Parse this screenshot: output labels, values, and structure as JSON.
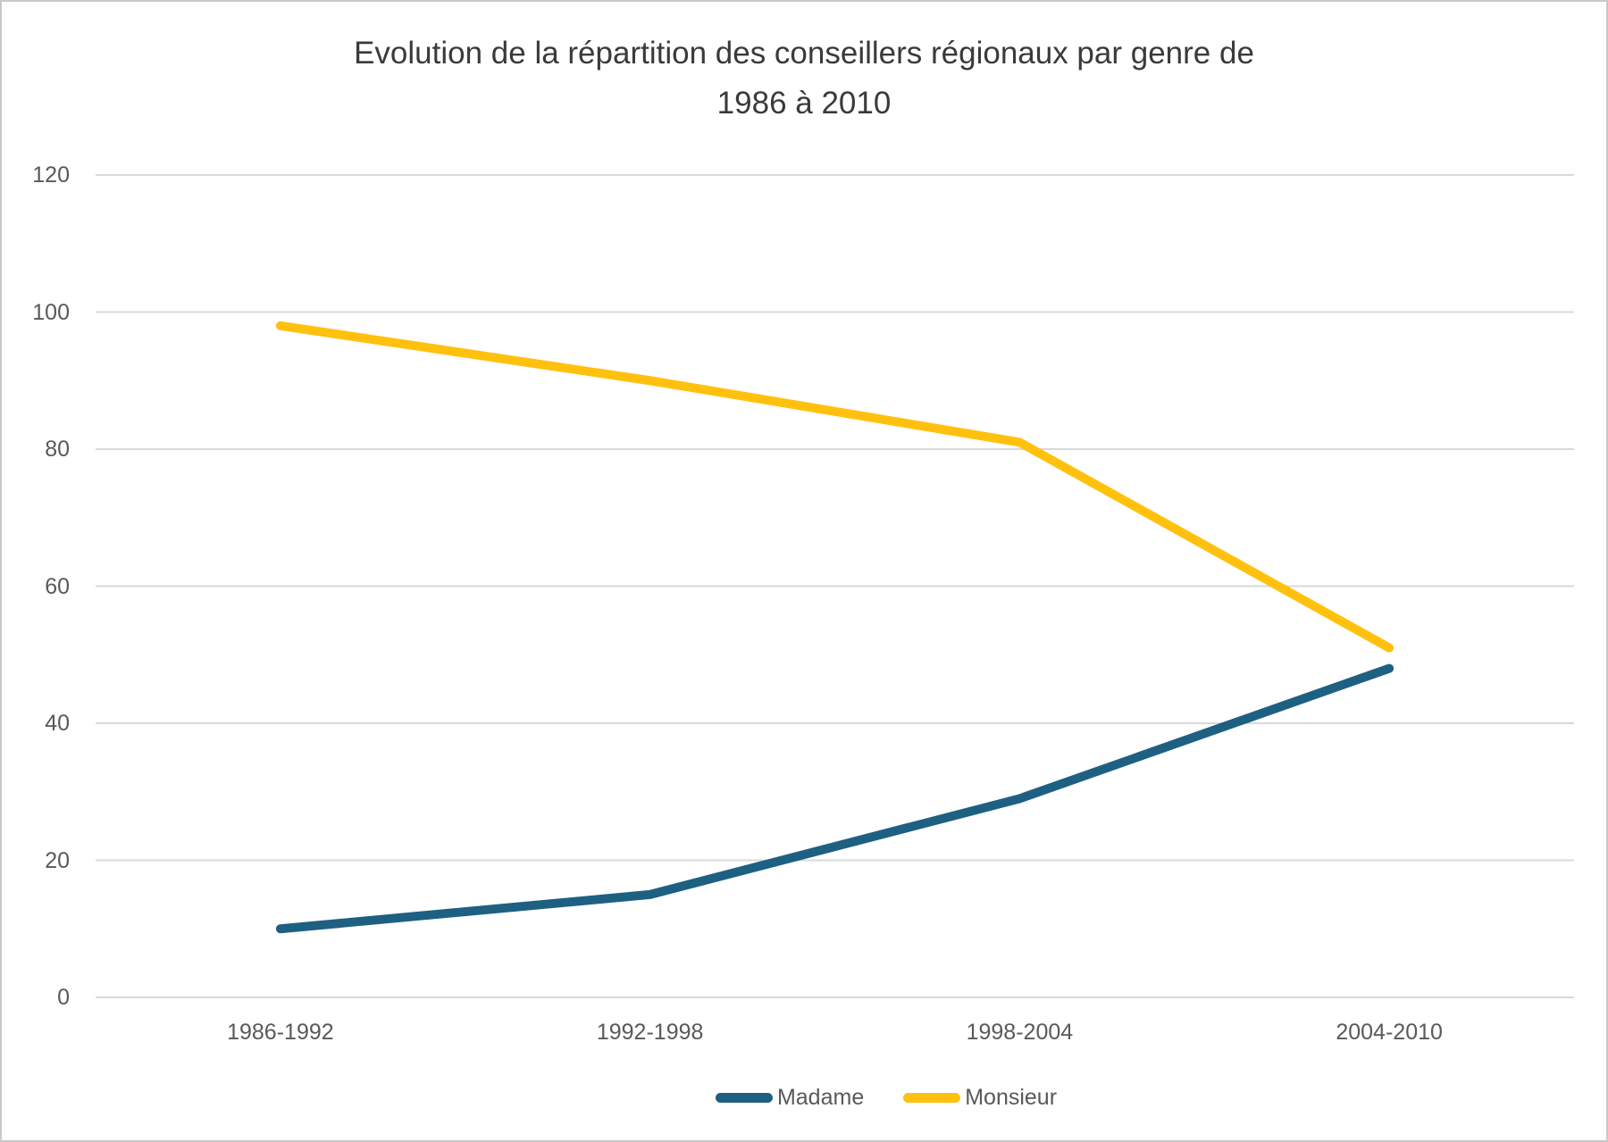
{
  "page": {
    "background": "#ffffff",
    "border_color": "#c9c9c9"
  },
  "chart_data": {
    "type": "line",
    "title": "Evolution de la répartition des conseillers régionaux par genre de 1986 à 2010",
    "title_line1": "Evolution de la répartition des conseillers régionaux par genre de",
    "title_line2": "1986 à 2010",
    "categories": [
      "1986-1992",
      "1992-1998",
      "1998-2004",
      "2004-2010"
    ],
    "series": [
      {
        "name": "Madame",
        "color": "#1E6082",
        "values": [
          10,
          15,
          29,
          48
        ]
      },
      {
        "name": "Monsieur",
        "color": "#FFC10E",
        "values": [
          98,
          90,
          81,
          51
        ]
      }
    ],
    "ylim": [
      0,
      120
    ],
    "yticks": [
      0,
      20,
      40,
      60,
      80,
      100,
      120
    ],
    "xlabel": "",
    "ylabel": "",
    "grid": "horizontal",
    "gridline_color": "#D9D9D9",
    "axis_label_color": "#595959",
    "title_color": "#3A3A3A",
    "line_width": 10,
    "legend_position": "bottom"
  }
}
